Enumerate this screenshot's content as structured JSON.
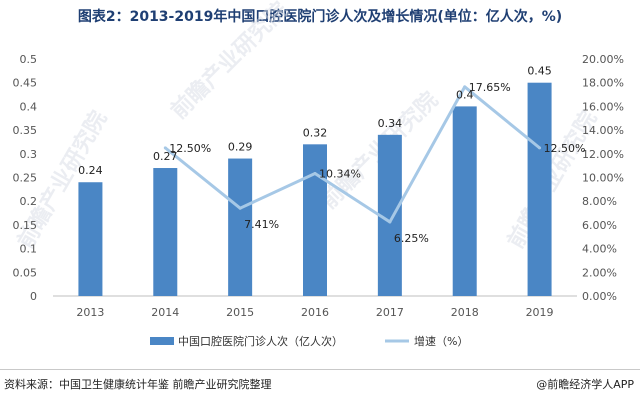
{
  "title": "图表2：2013-2019年中国口腔医院门诊人次及增长情况(单位：亿人次，%)",
  "source": "资料来源：中国卫生健康统计年鉴 前瞻产业研究院整理",
  "brand": "@前瞻经济学人APP",
  "watermark": "前瞻产业研究院",
  "colors": {
    "bar": "#4a86c5",
    "line": "#a6c8e6",
    "title": "#1f3f73"
  },
  "chart_data": {
    "type": "bar",
    "categories": [
      "2013",
      "2014",
      "2015",
      "2016",
      "2017",
      "2018",
      "2019"
    ],
    "series": [
      {
        "name": "中国口腔医院门诊人次（亿人次）",
        "type": "bar",
        "axis": "left",
        "values": [
          0.24,
          0.27,
          0.29,
          0.32,
          0.34,
          0.4,
          0.45
        ],
        "labels": [
          "0.24",
          "0.27",
          "0.29",
          "0.32",
          "0.34",
          "0.4",
          "0.45"
        ]
      },
      {
        "name": "增速（%）",
        "type": "line",
        "axis": "right",
        "values": [
          null,
          12.5,
          7.41,
          10.34,
          6.25,
          17.65,
          12.5
        ],
        "labels": [
          "",
          "12.50%",
          "7.41%",
          "10.34%",
          "6.25%",
          "17.65%",
          "12.50%"
        ]
      }
    ],
    "y_left": {
      "min": 0,
      "max": 0.5,
      "step": 0.05,
      "ticks": [
        "0",
        "0.05",
        "0.1",
        "0.15",
        "0.2",
        "0.25",
        "0.3",
        "0.35",
        "0.4",
        "0.45",
        "0.5"
      ]
    },
    "y_right": {
      "min": 0,
      "max": 20,
      "step": 2,
      "ticks": [
        "0.00%",
        "2.00%",
        "4.00%",
        "6.00%",
        "8.00%",
        "10.00%",
        "12.00%",
        "14.00%",
        "16.00%",
        "18.00%",
        "20.00%"
      ]
    },
    "grid": false,
    "legend_position": "bottom"
  }
}
